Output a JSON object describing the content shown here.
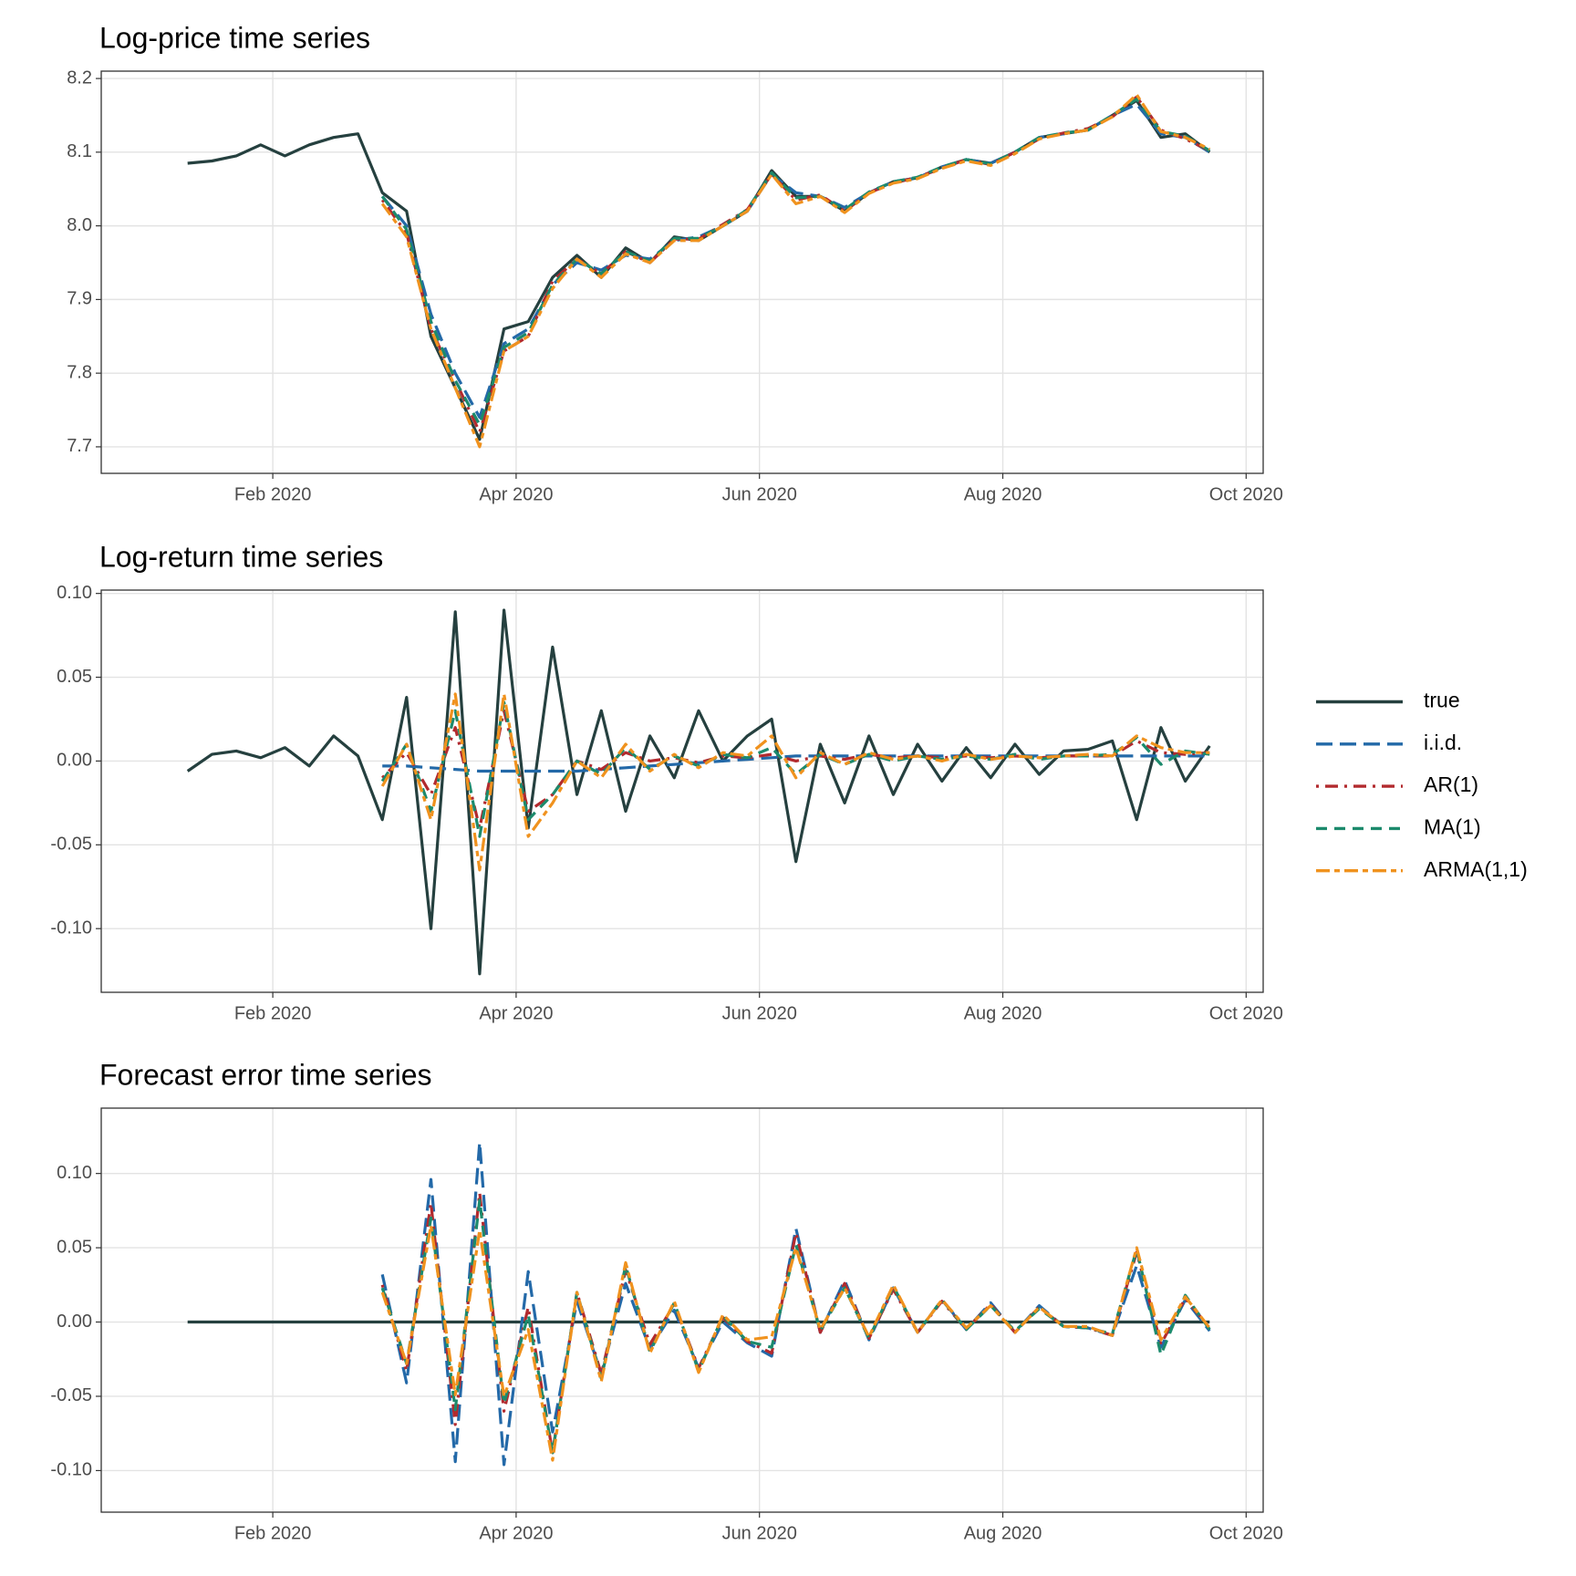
{
  "chart_data": [
    {
      "type": "line",
      "title": "Log-price time series",
      "x": [
        1.3,
        1.5,
        1.7,
        1.9,
        2.1,
        2.3,
        2.5,
        2.7,
        2.9,
        3.1,
        3.3,
        3.5,
        3.7,
        3.9,
        4.1,
        4.3,
        4.5,
        4.7,
        4.9,
        5.1,
        5.3,
        5.5,
        5.7,
        5.9,
        6.1,
        6.3,
        6.5,
        6.7,
        6.9,
        7.1,
        7.3,
        7.5,
        7.7,
        7.9,
        8.1,
        8.3,
        8.5,
        8.7,
        8.9,
        9.1,
        9.3,
        9.5,
        9.7
      ],
      "xlim": [
        0.59,
        10.14
      ],
      "xticks": [
        {
          "value": 2,
          "label": "Feb 2020"
        },
        {
          "value": 4,
          "label": "Apr 2020"
        },
        {
          "value": 6,
          "label": "Jun 2020"
        },
        {
          "value": 8,
          "label": "Aug 2020"
        },
        {
          "value": 10,
          "label": "Oct 2020"
        }
      ],
      "ylim": [
        7.664,
        8.21
      ],
      "yticks": [
        7.7,
        7.8,
        7.9,
        {
          "value": 8,
          "label": "8.0"
        },
        8.1,
        8.2
      ],
      "grid": true,
      "series": [
        {
          "name": "true",
          "color": "#25403f",
          "linetype": "solid",
          "values": [
            8.085,
            8.088,
            8.095,
            8.11,
            8.095,
            8.11,
            8.12,
            8.125,
            8.045,
            8.02,
            7.85,
            7.78,
            7.71,
            7.86,
            7.87,
            7.93,
            7.96,
            7.93,
            7.97,
            7.95,
            7.985,
            7.98,
            8.0,
            8.02,
            8.075,
            8.04,
            8.04,
            8.02,
            8.045,
            8.06,
            8.065,
            8.08,
            8.09,
            8.085,
            8.1,
            8.12,
            8.125,
            8.13,
            8.15,
            8.17,
            8.12,
            8.125,
            8.1
          ]
        },
        {
          "name": "i.i.d.",
          "color": "#2369a8",
          "linetype": "longdash",
          "values": [
            null,
            null,
            null,
            null,
            null,
            null,
            null,
            null,
            8.04,
            8.0,
            7.88,
            7.8,
            7.74,
            7.84,
            7.86,
            7.92,
            7.95,
            7.94,
            7.96,
            7.955,
            7.98,
            7.985,
            8.0,
            8.02,
            8.07,
            8.045,
            8.04,
            8.025,
            8.045,
            8.06,
            8.065,
            8.08,
            8.09,
            8.085,
            8.1,
            8.12,
            8.125,
            8.13,
            8.15,
            8.165,
            8.125,
            8.12,
            8.1
          ]
        },
        {
          "name": "AR(1)",
          "color": "#b22a2e",
          "linetype": "dotdash",
          "values": [
            null,
            null,
            null,
            null,
            null,
            null,
            null,
            null,
            8.035,
            7.99,
            7.86,
            7.79,
            7.72,
            7.83,
            7.85,
            7.925,
            7.955,
            7.935,
            7.965,
            7.95,
            7.982,
            7.982,
            8.002,
            8.022,
            8.07,
            8.035,
            8.042,
            8.02,
            8.045,
            8.058,
            8.066,
            8.078,
            8.09,
            8.083,
            8.1,
            8.118,
            8.126,
            8.132,
            8.148,
            8.175,
            8.13,
            8.118,
            8.102
          ]
        },
        {
          "name": "MA(1)",
          "color": "#1c8a6c",
          "linetype": "dashed",
          "values": [
            null,
            null,
            null,
            null,
            null,
            null,
            null,
            null,
            8.04,
            7.995,
            7.87,
            7.79,
            7.73,
            7.835,
            7.855,
            7.92,
            7.955,
            7.935,
            7.965,
            7.952,
            7.983,
            7.983,
            8.0,
            8.022,
            8.072,
            8.038,
            8.04,
            8.022,
            8.046,
            8.06,
            8.066,
            8.08,
            8.09,
            8.084,
            8.1,
            8.12,
            8.126,
            8.13,
            8.15,
            8.172,
            8.128,
            8.122,
            8.102
          ]
        },
        {
          "name": "ARMA(1,1)",
          "color": "#f0921e",
          "linetype": "twodash",
          "values": [
            null,
            null,
            null,
            null,
            null,
            null,
            null,
            null,
            8.03,
            7.985,
            7.86,
            7.78,
            7.7,
            7.83,
            7.85,
            7.915,
            7.955,
            7.93,
            7.962,
            7.95,
            7.98,
            7.98,
            8.0,
            8.02,
            8.07,
            8.03,
            8.04,
            8.018,
            8.044,
            8.058,
            8.064,
            8.078,
            8.088,
            8.082,
            8.098,
            8.118,
            8.125,
            8.13,
            8.148,
            8.178,
            8.128,
            8.12,
            8.104
          ]
        }
      ]
    },
    {
      "type": "line",
      "title": "Log-return time series",
      "x": [
        1.3,
        1.5,
        1.7,
        1.9,
        2.1,
        2.3,
        2.5,
        2.7,
        2.9,
        3.1,
        3.3,
        3.5,
        3.7,
        3.9,
        4.1,
        4.3,
        4.5,
        4.7,
        4.9,
        5.1,
        5.3,
        5.5,
        5.7,
        5.9,
        6.1,
        6.3,
        6.5,
        6.7,
        6.9,
        7.1,
        7.3,
        7.5,
        7.7,
        7.9,
        8.1,
        8.3,
        8.5,
        8.7,
        8.9,
        9.1,
        9.3,
        9.5,
        9.7
      ],
      "xlim": [
        0.59,
        10.14
      ],
      "xticks": [
        {
          "value": 2,
          "label": "Feb 2020"
        },
        {
          "value": 4,
          "label": "Apr 2020"
        },
        {
          "value": 6,
          "label": "Jun 2020"
        },
        {
          "value": 8,
          "label": "Aug 2020"
        },
        {
          "value": 10,
          "label": "Oct 2020"
        }
      ],
      "ylim": [
        -0.138,
        0.102
      ],
      "yticks": [
        {
          "value": -0.1,
          "label": "-0.10"
        },
        -0.05,
        {
          "value": 0,
          "label": "0.00"
        },
        0.05,
        {
          "value": 0.1,
          "label": "0.10"
        }
      ],
      "grid": true,
      "legend": "right",
      "series": [
        {
          "name": "true",
          "color": "#25403f",
          "linetype": "solid",
          "values": [
            -0.006,
            0.004,
            0.006,
            0.002,
            0.008,
            -0.003,
            0.015,
            0.003,
            -0.035,
            0.038,
            -0.1,
            0.089,
            -0.127,
            0.09,
            -0.04,
            0.068,
            -0.02,
            0.03,
            -0.03,
            0.015,
            -0.01,
            0.03,
            0.0,
            0.015,
            0.025,
            -0.06,
            0.01,
            -0.025,
            0.015,
            -0.02,
            0.01,
            -0.012,
            0.008,
            -0.01,
            0.01,
            -0.008,
            0.006,
            0.007,
            0.012,
            -0.035,
            0.02,
            -0.012,
            0.009
          ]
        },
        {
          "name": "i.i.d.",
          "color": "#2369a8",
          "linetype": "longdash",
          "values": [
            null,
            null,
            null,
            null,
            null,
            null,
            null,
            null,
            -0.003,
            -0.003,
            -0.004,
            -0.005,
            -0.006,
            -0.006,
            -0.006,
            -0.006,
            -0.006,
            -0.005,
            -0.004,
            -0.003,
            -0.002,
            -0.001,
            0.0,
            0.001,
            0.002,
            0.003,
            0.003,
            0.003,
            0.003,
            0.003,
            0.003,
            0.003,
            0.003,
            0.003,
            0.003,
            0.003,
            0.003,
            0.003,
            0.003,
            0.003,
            0.003,
            0.003,
            0.003
          ]
        },
        {
          "name": "AR(1)",
          "color": "#b22a2e",
          "linetype": "dotdash",
          "values": [
            null,
            null,
            null,
            null,
            null,
            null,
            null,
            null,
            -0.01,
            0.005,
            -0.02,
            0.02,
            -0.04,
            0.03,
            -0.03,
            -0.02,
            0.0,
            -0.005,
            0.005,
            0.0,
            0.002,
            -0.001,
            0.003,
            0.002,
            0.004,
            0.0,
            0.003,
            0.001,
            0.004,
            0.002,
            0.003,
            0.002,
            0.003,
            0.002,
            0.003,
            0.002,
            0.003,
            0.003,
            0.003,
            0.012,
            0.005,
            0.004,
            0.005
          ]
        },
        {
          "name": "MA(1)",
          "color": "#1c8a6c",
          "linetype": "dashed",
          "values": [
            null,
            null,
            null,
            null,
            null,
            null,
            null,
            null,
            -0.012,
            0.01,
            -0.03,
            0.03,
            -0.045,
            0.035,
            -0.035,
            -0.02,
            0.0,
            -0.008,
            0.008,
            -0.005,
            0.003,
            -0.003,
            0.004,
            0.002,
            0.008,
            -0.008,
            0.004,
            -0.002,
            0.004,
            0.0,
            0.003,
            0.001,
            0.003,
            0.001,
            0.004,
            0.001,
            0.003,
            0.003,
            0.004,
            0.014,
            -0.002,
            0.006,
            0.004
          ]
        },
        {
          "name": "ARMA(1,1)",
          "color": "#f0921e",
          "linetype": "twodash",
          "values": [
            null,
            null,
            null,
            null,
            null,
            null,
            null,
            null,
            -0.015,
            0.01,
            -0.035,
            0.04,
            -0.065,
            0.04,
            -0.045,
            -0.025,
            0.0,
            -0.01,
            0.01,
            -0.006,
            0.004,
            -0.004,
            0.005,
            0.003,
            0.015,
            -0.01,
            0.005,
            -0.002,
            0.005,
            0.001,
            0.003,
            0.0,
            0.004,
            0.001,
            0.003,
            0.002,
            0.003,
            0.004,
            0.003,
            0.015,
            0.008,
            0.005,
            0.005
          ]
        }
      ]
    },
    {
      "type": "line",
      "title": "Forecast error time series",
      "x": [
        1.3,
        1.5,
        1.7,
        1.9,
        2.1,
        2.3,
        2.5,
        2.7,
        2.9,
        3.1,
        3.3,
        3.5,
        3.7,
        3.9,
        4.1,
        4.3,
        4.5,
        4.7,
        4.9,
        5.1,
        5.3,
        5.5,
        5.7,
        5.9,
        6.1,
        6.3,
        6.5,
        6.7,
        6.9,
        7.1,
        7.3,
        7.5,
        7.7,
        7.9,
        8.1,
        8.3,
        8.5,
        8.7,
        8.9,
        9.1,
        9.3,
        9.5,
        9.7
      ],
      "xlim": [
        0.59,
        10.14
      ],
      "xticks": [
        {
          "value": 2,
          "label": "Feb 2020"
        },
        {
          "value": 4,
          "label": "Apr 2020"
        },
        {
          "value": 6,
          "label": "Jun 2020"
        },
        {
          "value": 8,
          "label": "Aug 2020"
        },
        {
          "value": 10,
          "label": "Oct 2020"
        }
      ],
      "ylim": [
        -0.128,
        0.144
      ],
      "yticks": [
        {
          "value": -0.1,
          "label": "-0.10"
        },
        -0.05,
        {
          "value": 0,
          "label": "0.00"
        },
        0.05,
        {
          "value": 0.1,
          "label": "0.10"
        }
      ],
      "grid": true,
      "series": [
        {
          "name": "true",
          "color": "#25403f",
          "linetype": "solid",
          "values": [
            0,
            0,
            0,
            0,
            0,
            0,
            0,
            0,
            0,
            0,
            0,
            0,
            0,
            0,
            0,
            0,
            0,
            0,
            0,
            0,
            0,
            0,
            0,
            0,
            0,
            0,
            0,
            0,
            0,
            0,
            0,
            0,
            0,
            0,
            0,
            0,
            0,
            0,
            0,
            0,
            0,
            0,
            0
          ]
        },
        {
          "name": "i.i.d.",
          "color": "#2369a8",
          "linetype": "longdash",
          "values": [
            null,
            null,
            null,
            null,
            null,
            null,
            null,
            null,
            0.032,
            -0.041,
            0.096,
            -0.094,
            0.121,
            -0.096,
            0.034,
            -0.074,
            0.014,
            -0.035,
            0.026,
            -0.018,
            0.008,
            -0.031,
            0.0,
            -0.014,
            -0.023,
            0.063,
            -0.007,
            0.028,
            -0.012,
            0.023,
            -0.007,
            0.015,
            -0.005,
            0.013,
            -0.007,
            0.011,
            -0.003,
            -0.004,
            -0.009,
            0.038,
            -0.017,
            0.015,
            -0.006
          ]
        },
        {
          "name": "AR(1)",
          "color": "#b22a2e",
          "linetype": "dotdash",
          "values": [
            null,
            null,
            null,
            null,
            null,
            null,
            null,
            null,
            0.025,
            -0.033,
            0.08,
            -0.069,
            0.087,
            -0.06,
            0.01,
            -0.088,
            0.02,
            -0.035,
            0.035,
            -0.015,
            0.012,
            -0.031,
            0.003,
            -0.013,
            -0.021,
            0.06,
            -0.007,
            0.026,
            -0.011,
            0.022,
            -0.007,
            0.014,
            -0.005,
            0.012,
            -0.007,
            0.01,
            -0.003,
            -0.004,
            -0.009,
            0.047,
            -0.015,
            0.016,
            -0.004
          ]
        },
        {
          "name": "MA(1)",
          "color": "#1c8a6c",
          "linetype": "dashed",
          "values": [
            null,
            null,
            null,
            null,
            null,
            null,
            null,
            null,
            0.023,
            -0.028,
            0.07,
            -0.059,
            0.082,
            -0.055,
            0.005,
            -0.088,
            0.02,
            -0.038,
            0.038,
            -0.02,
            0.013,
            -0.033,
            0.004,
            -0.013,
            -0.017,
            0.052,
            -0.006,
            0.023,
            -0.011,
            0.024,
            -0.007,
            0.015,
            -0.005,
            0.011,
            -0.006,
            0.009,
            -0.003,
            -0.004,
            -0.008,
            0.049,
            -0.022,
            0.018,
            -0.005
          ]
        },
        {
          "name": "ARMA(1,1)",
          "color": "#f0921e",
          "linetype": "twodash",
          "values": [
            null,
            null,
            null,
            null,
            null,
            null,
            null,
            null,
            0.02,
            -0.028,
            0.065,
            -0.049,
            0.062,
            -0.05,
            -0.005,
            -0.093,
            0.02,
            -0.04,
            0.04,
            -0.021,
            0.014,
            -0.034,
            0.005,
            -0.012,
            -0.01,
            0.05,
            -0.005,
            0.023,
            -0.01,
            0.025,
            -0.007,
            0.015,
            -0.004,
            0.011,
            -0.007,
            0.01,
            -0.003,
            -0.003,
            -0.009,
            0.05,
            -0.012,
            0.017,
            -0.004
          ]
        }
      ]
    }
  ]
}
